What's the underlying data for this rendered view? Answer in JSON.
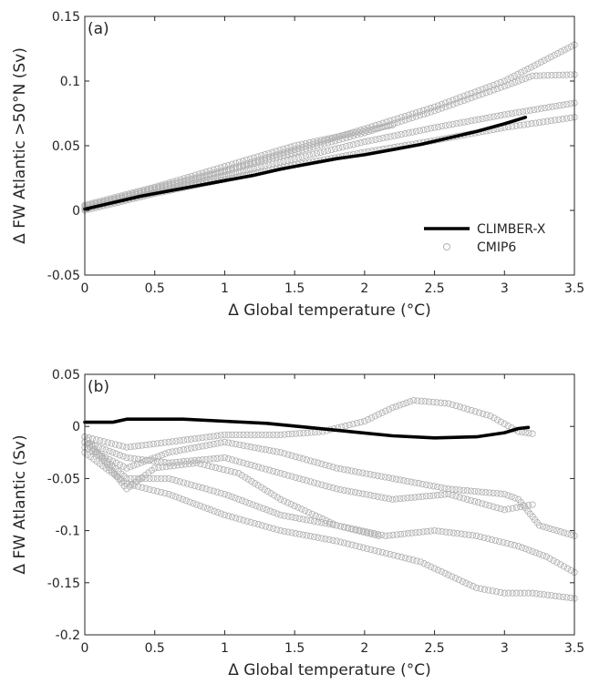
{
  "chart_data": [
    {
      "type": "scatter",
      "panel_label": "(a)",
      "xlabel": "Δ Global temperature (°C)",
      "ylabel": "Δ FW Atlantic >50°N (Sv)",
      "xlim": [
        0,
        3.5
      ],
      "ylim": [
        -0.05,
        0.15
      ],
      "xticks": [
        "0",
        "0.5",
        "1",
        "1.5",
        "2",
        "2.5",
        "3",
        "3.5"
      ],
      "yticks": [
        "-0.05",
        "0",
        "0.05",
        "0.1",
        "0.15"
      ],
      "grid": false,
      "legend_position": "lower-right",
      "legend": [
        "CLIMBER-X",
        "CMIP6"
      ],
      "series": [
        {
          "name": "CLIMBER-X",
          "style": "line",
          "color": "#000000",
          "x": [
            0.0,
            0.2,
            0.4,
            0.6,
            0.8,
            1.0,
            1.2,
            1.4,
            1.6,
            1.8,
            2.0,
            2.2,
            2.4,
            2.6,
            2.8,
            3.0,
            3.15
          ],
          "y": [
            0.001,
            0.006,
            0.011,
            0.015,
            0.019,
            0.023,
            0.027,
            0.032,
            0.036,
            0.04,
            0.043,
            0.047,
            0.051,
            0.056,
            0.061,
            0.067,
            0.072
          ]
        },
        {
          "name": "CMIP6",
          "style": "open-circles",
          "color": "#b3b3b3",
          "models": [
            {
              "x": [
                0.0,
                0.5,
                1.0,
                1.5,
                2.0,
                2.5,
                3.0,
                3.5
              ],
              "y": [
                0.003,
                0.017,
                0.031,
                0.047,
                0.063,
                0.08,
                0.1,
                0.128
              ]
            },
            {
              "x": [
                0.0,
                0.5,
                1.0,
                1.5,
                2.0,
                2.5,
                3.0,
                3.2,
                3.5
              ],
              "y": [
                0.002,
                0.016,
                0.03,
                0.045,
                0.06,
                0.077,
                0.096,
                0.104,
                0.105
              ]
            },
            {
              "x": [
                0.0,
                0.5,
                1.0,
                1.5,
                2.0,
                2.5,
                3.0,
                3.5
              ],
              "y": [
                0.001,
                0.014,
                0.027,
                0.04,
                0.053,
                0.064,
                0.074,
                0.083
              ]
            },
            {
              "x": [
                0.0,
                0.5,
                1.0,
                1.5,
                2.0,
                2.5,
                3.0,
                3.5
              ],
              "y": [
                0.0,
                0.013,
                0.024,
                0.035,
                0.045,
                0.054,
                0.064,
                0.072
              ]
            },
            {
              "x": [
                0.0,
                0.5,
                1.0,
                1.5,
                2.2
              ],
              "y": [
                0.004,
                0.018,
                0.034,
                0.05,
                0.066
              ]
            }
          ]
        }
      ]
    },
    {
      "type": "scatter",
      "panel_label": "(b)",
      "xlabel": "Δ Global temperature (°C)",
      "ylabel": "Δ FW Atlantic (Sv)",
      "xlim": [
        0,
        3.5
      ],
      "ylim": [
        -0.2,
        0.05
      ],
      "xticks": [
        "0",
        "0.5",
        "1",
        "1.5",
        "2",
        "2.5",
        "3",
        "3.5"
      ],
      "yticks": [
        "-0.2",
        "-0.15",
        "-0.1",
        "-0.05",
        "0",
        "0.05"
      ],
      "grid": false,
      "series": [
        {
          "name": "CLIMBER-X",
          "style": "line",
          "color": "#000000",
          "x": [
            0.0,
            0.2,
            0.3,
            0.5,
            0.7,
            1.0,
            1.3,
            1.6,
            1.9,
            2.2,
            2.5,
            2.8,
            3.0,
            3.1,
            3.17
          ],
          "y": [
            0.004,
            0.004,
            0.007,
            0.007,
            0.007,
            0.005,
            0.003,
            -0.001,
            -0.005,
            -0.009,
            -0.011,
            -0.01,
            -0.006,
            -0.002,
            -0.001
          ]
        },
        {
          "name": "CMIP6",
          "style": "open-circles",
          "color": "#b3b3b3",
          "models": [
            {
              "x": [
                0.0,
                0.3,
                0.6,
                1.0,
                1.4,
                1.7,
                2.0,
                2.2,
                2.35,
                2.6,
                2.9,
                3.1,
                3.2
              ],
              "y": [
                -0.01,
                -0.02,
                -0.015,
                -0.008,
                -0.008,
                -0.005,
                0.005,
                0.018,
                0.025,
                0.022,
                0.01,
                -0.005,
                -0.007
              ]
            },
            {
              "x": [
                0.0,
                0.3,
                0.6,
                1.0,
                1.4,
                1.8,
                2.2,
                2.6,
                3.0,
                3.1,
                3.25,
                3.5
              ],
              "y": [
                -0.02,
                -0.04,
                -0.025,
                -0.015,
                -0.025,
                -0.04,
                -0.05,
                -0.06,
                -0.065,
                -0.07,
                -0.095,
                -0.105
              ]
            },
            {
              "x": [
                0.0,
                0.3,
                0.6,
                1.0,
                1.4,
                1.8,
                2.2,
                2.6,
                3.0,
                3.2
              ],
              "y": [
                -0.015,
                -0.03,
                -0.035,
                -0.03,
                -0.045,
                -0.06,
                -0.07,
                -0.065,
                -0.08,
                -0.075
              ]
            },
            {
              "x": [
                0.0,
                0.3,
                0.6,
                1.0,
                1.4,
                1.8,
                2.15,
                2.5,
                2.8,
                3.1,
                3.3,
                3.5
              ],
              "y": [
                -0.015,
                -0.05,
                -0.05,
                -0.065,
                -0.085,
                -0.095,
                -0.105,
                -0.1,
                -0.105,
                -0.115,
                -0.125,
                -0.14
              ]
            },
            {
              "x": [
                0.0,
                0.3,
                0.6,
                1.0,
                1.4,
                1.8,
                2.1,
                2.4,
                2.8,
                3.0,
                3.2,
                3.5
              ],
              "y": [
                -0.025,
                -0.055,
                -0.065,
                -0.085,
                -0.1,
                -0.11,
                -0.12,
                -0.13,
                -0.155,
                -0.16,
                -0.16,
                -0.165
              ]
            },
            {
              "x": [
                0.0,
                0.3,
                0.5,
                0.8,
                1.1,
                1.4,
                1.8,
                2.1
              ],
              "y": [
                -0.01,
                -0.06,
                -0.04,
                -0.035,
                -0.045,
                -0.07,
                -0.095,
                -0.105
              ]
            }
          ]
        }
      ]
    }
  ]
}
